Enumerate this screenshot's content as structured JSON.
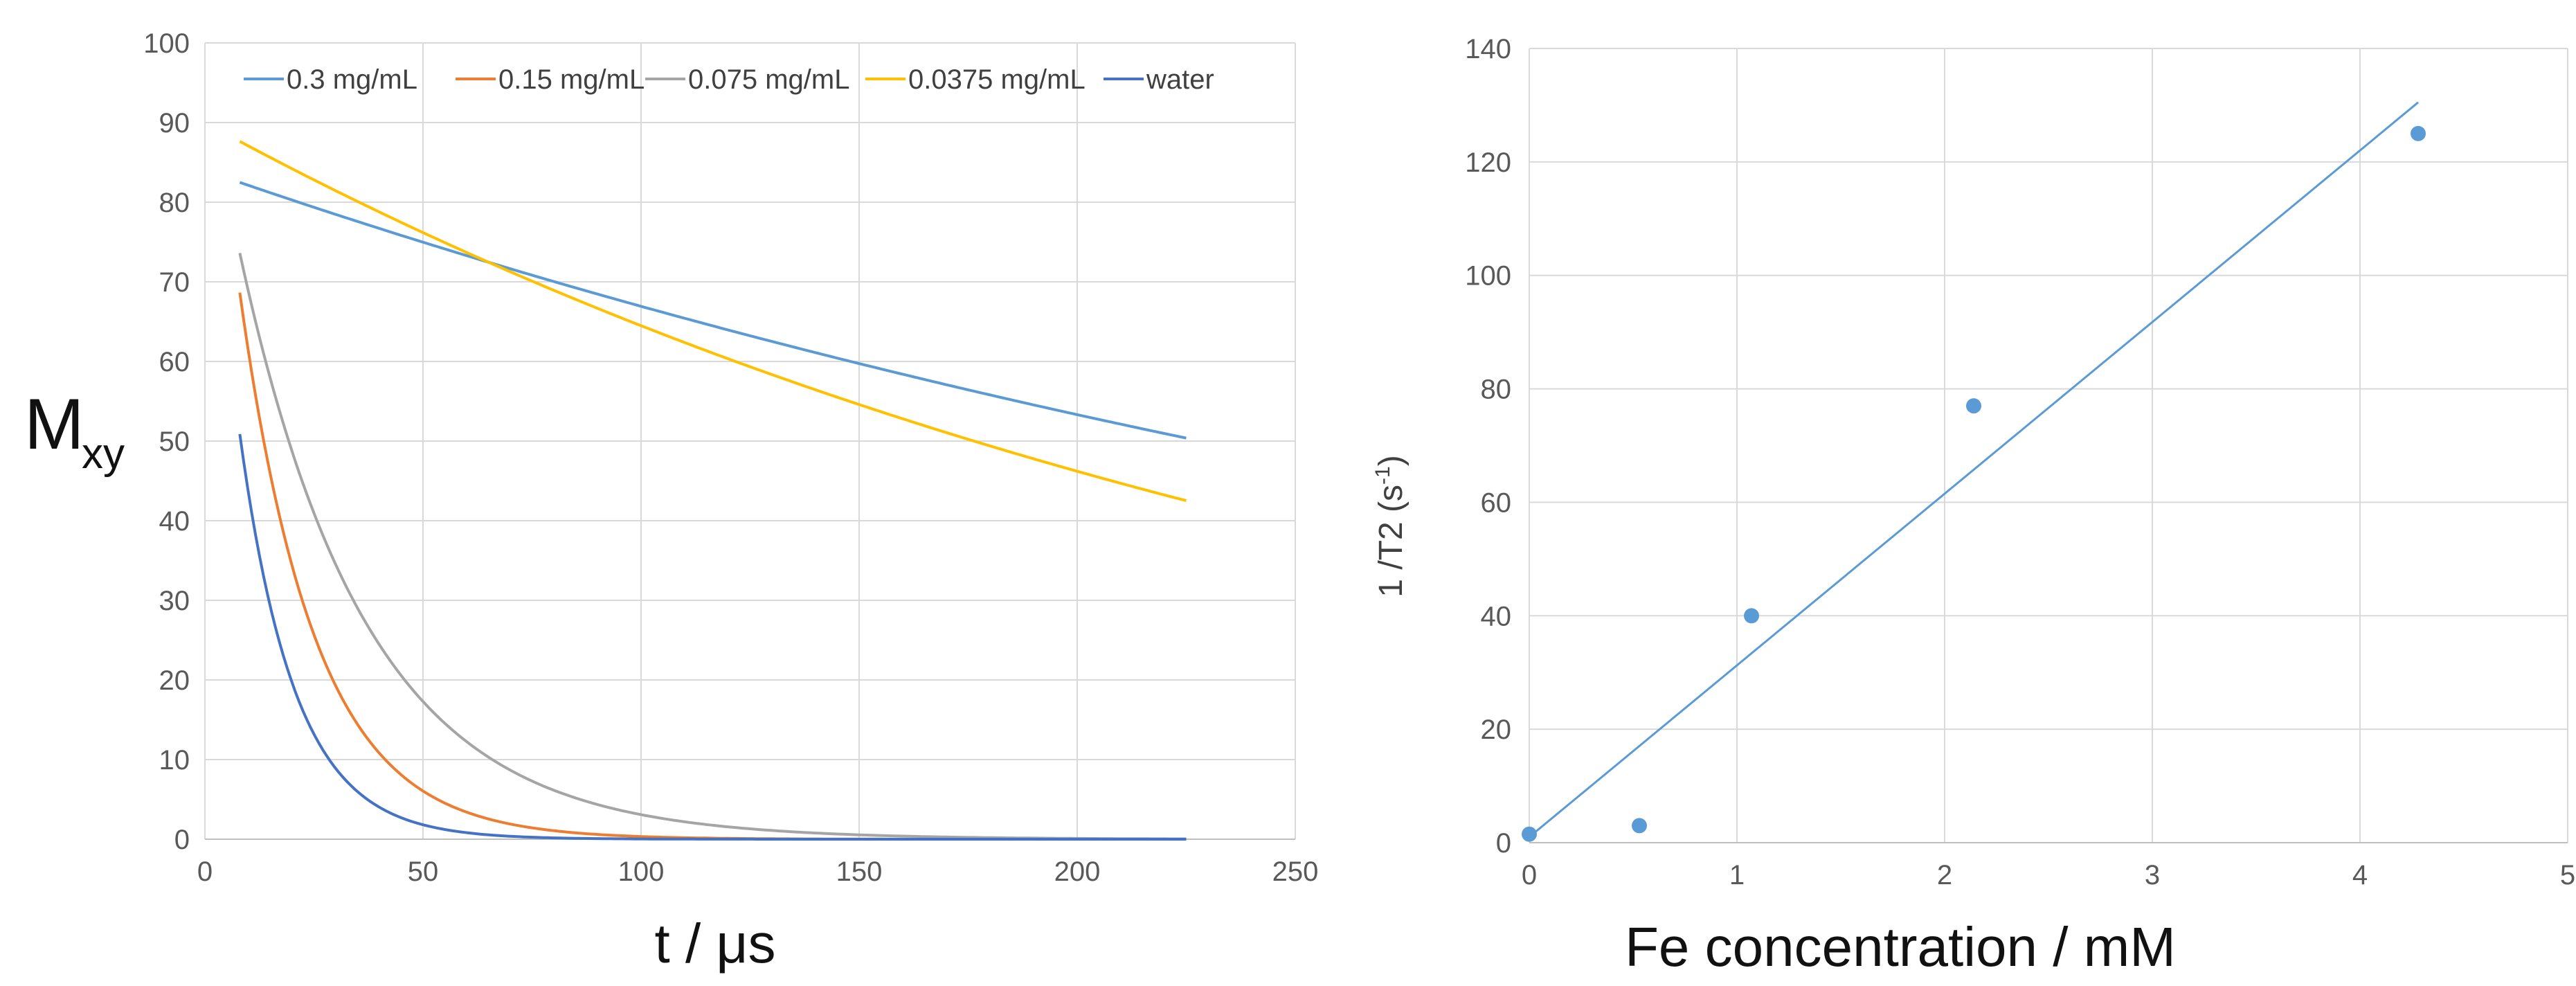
{
  "chart_data": [
    {
      "type": "line",
      "xlabel": "t / μs",
      "ylabel": "M",
      "ylabel_sub": "xy",
      "xlim": [
        0,
        250
      ],
      "ylim": [
        0,
        100
      ],
      "xticks": [
        0,
        50,
        100,
        150,
        200,
        250
      ],
      "yticks": [
        0,
        10,
        20,
        30,
        40,
        50,
        60,
        70,
        80,
        90,
        100
      ],
      "grid": true,
      "legend_position": "top",
      "series": [
        {
          "name": "0.3 mg/mL",
          "color": "#5b9bd5",
          "x_start": 8,
          "x_end": 225,
          "M0": 84,
          "T2": 440
        },
        {
          "name": "0.15 mg/mL",
          "color": "#ed7d31",
          "x_start": 8,
          "x_end": 225,
          "M0": 109,
          "T2": 17.3
        },
        {
          "name": "0.075 mg/mL",
          "color": "#a5a5a5",
          "x_start": 8,
          "x_end": 225,
          "M0": 97,
          "T2": 29
        },
        {
          "name": "0.0375 mg/mL",
          "color": "#ffc000",
          "x_start": 8,
          "x_end": 225,
          "M0": 90,
          "T2": 300
        },
        {
          "name": "water",
          "color": "#4472c4",
          "x_start": 8,
          "x_end": 225,
          "M0": 96,
          "T2": 12.6
        }
      ]
    },
    {
      "type": "scatter",
      "xlabel": "Fe concentration / mM",
      "ylabel": "1 /T2  (s",
      "ylabel_sup": "-1",
      "ylabel_end": ")",
      "xlim": [
        0,
        5
      ],
      "ylim": [
        0,
        140
      ],
      "xticks": [
        0,
        1,
        2,
        3,
        4,
        5
      ],
      "yticks": [
        0,
        20,
        40,
        60,
        80,
        100,
        120,
        140
      ],
      "grid": true,
      "points": {
        "x": [
          0,
          0.53,
          1.07,
          2.14,
          4.28
        ],
        "y": [
          1.5,
          3,
          40,
          77,
          125
        ],
        "color": "#5b9bd5"
      },
      "trendline": {
        "x": [
          0,
          4.28
        ],
        "y": [
          1,
          130.5
        ],
        "color": "#5b9bd5"
      }
    }
  ]
}
